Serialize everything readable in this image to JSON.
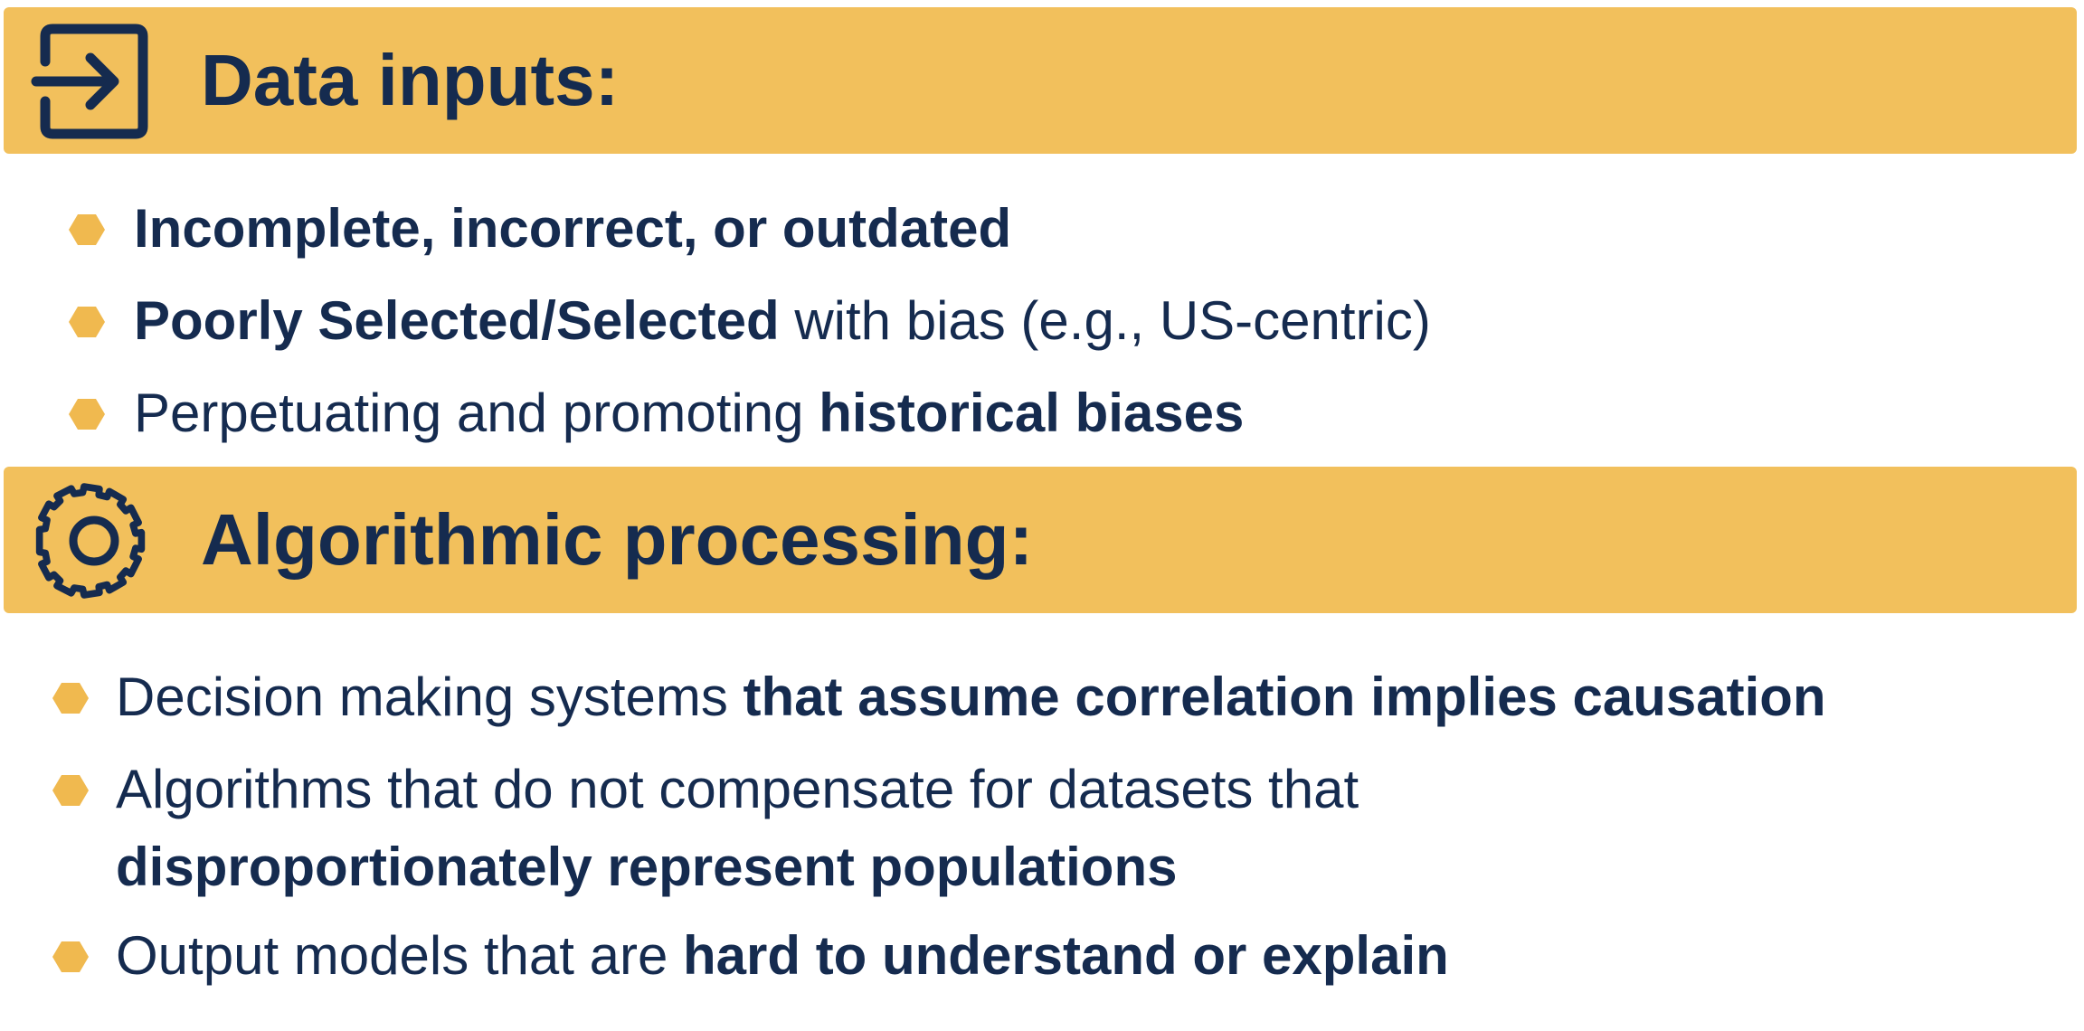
{
  "colors": {
    "banner": "#f2c05c",
    "bullet_marker": "#f0b94f",
    "text": "#152b4f"
  },
  "sections": [
    {
      "title": "Data inputs:",
      "icon": "enter-icon",
      "bullets": [
        {
          "bold_lead": "Incomplete, incorrect, or outdated"
        },
        {
          "bold_lead": "Poorly Selected/Selected",
          "plain_tail": " with bias (e.g., US-centric)"
        },
        {
          "plain_lead": "Perpetuating and promoting ",
          "bold_tail": "historical biases"
        }
      ]
    },
    {
      "title": "Algorithmic processing:",
      "icon": "gear-icon",
      "bullets": [
        {
          "plain_lead": "Decision making systems ",
          "bold_tail": "that assume correlation implies causation"
        },
        {
          "plain_lead": "Algorithms that do not compensate for datasets that",
          "bold_line2": "disproportionately represent populations"
        },
        {
          "plain_lead": "Output models that are ",
          "bold_tail": "hard to understand or explain"
        }
      ]
    }
  ]
}
